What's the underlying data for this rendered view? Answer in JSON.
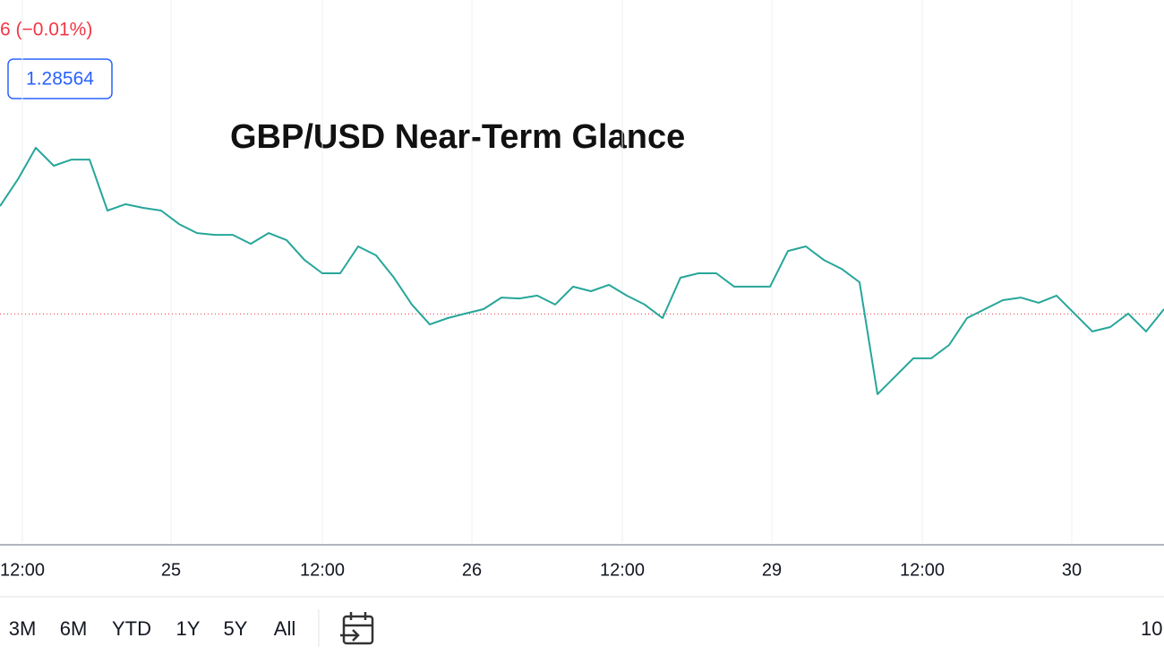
{
  "chart_data": {
    "type": "line",
    "title": "GBP/USD Near-Term Glance",
    "change_text": "6 (−0.01%)",
    "price_label": "1.28564",
    "price_line": 1.28564,
    "range_buttons": [
      "3M",
      "6M",
      "YTD",
      "1Y",
      "5Y",
      "All"
    ],
    "corner_text": "10",
    "xlim": [
      0,
      65
    ],
    "xticks": [
      {
        "value": 1.25,
        "label": "12:00"
      },
      {
        "value": 9.55,
        "label": "25"
      },
      {
        "value": 18,
        "label": "12:00"
      },
      {
        "value": 26.35,
        "label": "26"
      },
      {
        "value": 34.75,
        "label": "12:00"
      },
      {
        "value": 43.1,
        "label": "29"
      },
      {
        "value": 51.5,
        "label": "12:00"
      },
      {
        "value": 59.85,
        "label": "30"
      }
    ],
    "ylim": [
      1.275,
      1.3
    ],
    "grid": true,
    "series": [
      {
        "color": "#26a69a",
        "values": [
          1.29057,
          1.2918,
          1.29324,
          1.29242,
          1.2927,
          1.2927,
          1.29037,
          1.29066,
          1.29049,
          1.29037,
          1.28975,
          1.28934,
          1.28926,
          1.28926,
          1.28885,
          1.28934,
          1.28902,
          1.28811,
          1.2875,
          1.2875,
          1.28873,
          1.28832,
          1.2873,
          1.28607,
          1.28516,
          1.28545,
          1.28566,
          1.28586,
          1.28639,
          1.28635,
          1.28648,
          1.28607,
          1.28689,
          1.28668,
          1.28697,
          1.28648,
          1.28607,
          1.28545,
          1.2873,
          1.2875,
          1.2875,
          1.28689,
          1.28689,
          1.28689,
          1.28852,
          1.28873,
          1.28811,
          1.2877,
          1.28709,
          1.28197,
          1.28279,
          1.28361,
          1.28361,
          1.28422,
          1.28545,
          1.28586,
          1.28627,
          1.28639,
          1.28615,
          1.28648,
          1.28566,
          1.28484,
          1.28504,
          1.28566,
          1.28484,
          1.28586
        ]
      }
    ]
  }
}
